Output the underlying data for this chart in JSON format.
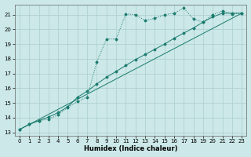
{
  "xlabel": "Humidex (Indice chaleur)",
  "bg_color": "#cce8e8",
  "line_color": "#1a7a6e",
  "grid_color": "#aacece",
  "xlim": [
    -0.5,
    23.5
  ],
  "ylim": [
    12.8,
    21.7
  ],
  "yticks": [
    13,
    14,
    15,
    16,
    17,
    18,
    19,
    20,
    21
  ],
  "xticks": [
    0,
    1,
    2,
    3,
    4,
    5,
    6,
    7,
    8,
    9,
    10,
    11,
    12,
    13,
    14,
    15,
    16,
    17,
    18,
    19,
    20,
    21,
    22,
    23
  ],
  "series1_x": [
    0,
    1,
    2,
    3,
    4,
    5,
    6,
    7,
    8,
    9,
    10,
    11,
    12,
    13,
    14,
    15,
    16,
    17,
    18,
    19,
    20,
    21,
    22,
    23
  ],
  "series1_y": [
    13.2,
    13.55,
    13.8,
    13.9,
    14.2,
    14.7,
    15.1,
    15.4,
    17.8,
    19.35,
    19.35,
    21.05,
    21.0,
    20.6,
    20.75,
    21.0,
    21.1,
    21.45,
    20.7,
    20.5,
    21.0,
    21.25,
    21.05,
    21.1
  ],
  "series2_x": [
    0,
    1,
    2,
    3,
    4,
    5,
    6,
    7,
    8,
    9,
    10,
    11,
    12,
    13,
    14,
    15,
    16,
    17,
    18,
    19,
    20,
    21,
    22,
    23
  ],
  "series2_y": [
    13.2,
    13.55,
    13.8,
    14.05,
    14.35,
    14.75,
    15.4,
    15.8,
    16.3,
    16.75,
    17.15,
    17.55,
    17.95,
    18.3,
    18.65,
    19.0,
    19.4,
    19.75,
    20.1,
    20.5,
    20.85,
    21.1,
    21.1,
    21.1
  ],
  "series3_x": [
    0,
    23
  ],
  "series3_y": [
    13.2,
    21.1
  ]
}
